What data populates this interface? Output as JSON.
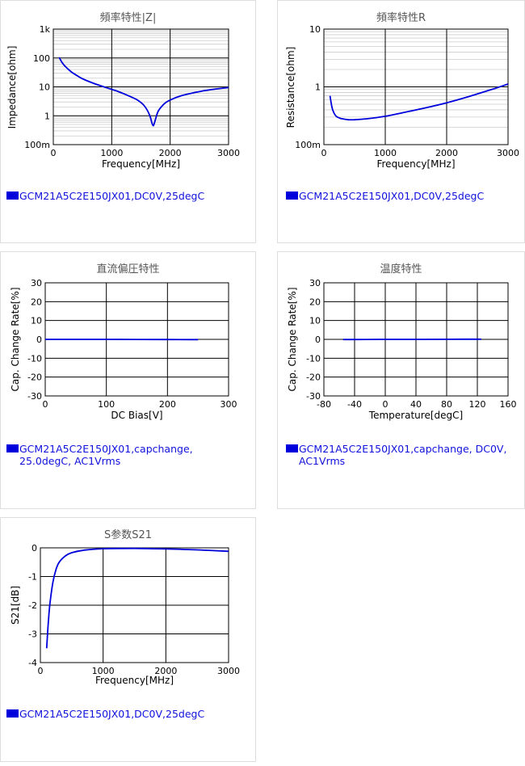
{
  "chart_data": [
    {
      "type": "line",
      "title": "頻率特性|Z|",
      "xlabel": "Frequency[MHz]",
      "ylabel": "Impedance[ohm]",
      "xlim": [
        0,
        3000
      ],
      "xticks": [
        "0",
        "1000",
        "2000",
        "3000"
      ],
      "yscale": "log",
      "ylim": [
        0.1,
        1000
      ],
      "yticks": [
        "100m",
        "1",
        "10",
        "100",
        "1k"
      ],
      "grid": true,
      "legend": "GCM21A5C2E150JX01,DC0V,25degC",
      "series": [
        {
          "name": "GCM21A5C2E150JX01,DC0V,25degC",
          "x": [
            100,
            150,
            200,
            300,
            400,
            500,
            700,
            900,
            1100,
            1300,
            1450,
            1550,
            1620,
            1660,
            1690,
            1710,
            1730,
            1760,
            1800,
            1900,
            2000,
            2200,
            2400,
            2600,
            2800,
            3000
          ],
          "y": [
            105,
            70,
            52,
            34,
            25,
            19,
            13,
            9.5,
            7,
            4.8,
            3.4,
            2.3,
            1.4,
            0.9,
            0.55,
            0.45,
            0.55,
            0.9,
            1.5,
            2.6,
            3.5,
            5,
            6.2,
            7.5,
            8.5,
            9.5
          ]
        }
      ]
    },
    {
      "type": "line",
      "title": "頻率特性R",
      "xlabel": "Frequency[MHz]",
      "ylabel": "Resistance[ohm]",
      "xlim": [
        0,
        3000
      ],
      "xticks": [
        "0",
        "1000",
        "2000",
        "3000"
      ],
      "yscale": "log",
      "ylim": [
        0.1,
        10
      ],
      "yticks": [
        "100m",
        "1",
        "10"
      ],
      "grid": true,
      "legend": "GCM21A5C2E150JX01,DC0V,25degC",
      "series": [
        {
          "name": "GCM21A5C2E150JX01,DC0V,25degC",
          "x": [
            100,
            130,
            160,
            200,
            250,
            300,
            400,
            500,
            700,
            1000,
            1300,
            1600,
            2000,
            2400,
            2800,
            3000
          ],
          "y": [
            0.7,
            0.45,
            0.36,
            0.31,
            0.29,
            0.28,
            0.27,
            0.27,
            0.28,
            0.31,
            0.36,
            0.42,
            0.53,
            0.7,
            0.95,
            1.12
          ]
        }
      ]
    },
    {
      "type": "line",
      "title": "直流偏圧特性",
      "xlabel": "DC Bias[V]",
      "ylabel": "Cap. Change Rate[%]",
      "xlim": [
        0,
        300
      ],
      "xticks": [
        "0",
        "100",
        "200",
        "300"
      ],
      "ylim": [
        -30,
        30
      ],
      "yticks": [
        "-30",
        "-20",
        "-10",
        "0",
        "10",
        "20",
        "30"
      ],
      "grid": true,
      "legend": "GCM21A5C2E150JX01,capchange, 25.0degC, AC1Vrms",
      "series": [
        {
          "name": "GCM21A5C2E150JX01,capchange, 25.0degC, AC1Vrms",
          "x": [
            0,
            50,
            100,
            150,
            200,
            250
          ],
          "y": [
            0,
            0,
            0,
            -0.05,
            -0.1,
            -0.15
          ]
        }
      ]
    },
    {
      "type": "line",
      "title": "温度特性",
      "xlabel": "Temperature[degC]",
      "ylabel": "Cap. Change Rate[%]",
      "xlim": [
        -80,
        160
      ],
      "xticks": [
        "-80",
        "-40",
        "0",
        "40",
        "80",
        "120",
        "160"
      ],
      "ylim": [
        -30,
        30
      ],
      "yticks": [
        "-30",
        "-20",
        "-10",
        "0",
        "10",
        "20",
        "30"
      ],
      "grid": true,
      "legend": "GCM21A5C2E150JX01,capchange, DC0V, AC1Vrms",
      "series": [
        {
          "name": "GCM21A5C2E150JX01,capchange, DC0V, AC1Vrms",
          "x": [
            -55,
            -25,
            0,
            25,
            50,
            85,
            125
          ],
          "y": [
            -0.1,
            -0.05,
            0,
            0,
            0,
            0.05,
            0.1
          ]
        }
      ]
    },
    {
      "type": "line",
      "title": "S参数S21",
      "xlabel": "Frequency[MHz]",
      "ylabel": "S21[dB]",
      "xlim": [
        0,
        3000
      ],
      "xticks": [
        "0",
        "1000",
        "2000",
        "3000"
      ],
      "ylim": [
        -4,
        0
      ],
      "yticks": [
        "-4",
        "-3",
        "-2",
        "-1",
        "0"
      ],
      "grid": true,
      "legend": "GCM21A5C2E150JX01,DC0V,25degC",
      "series": [
        {
          "name": "GCM21A5C2E150JX01,DC0V,25degC",
          "x": [
            100,
            120,
            150,
            200,
            250,
            300,
            400,
            500,
            700,
            1000,
            1500,
            2000,
            2500,
            3000
          ],
          "y": [
            -3.5,
            -2.8,
            -2.0,
            -1.2,
            -0.75,
            -0.5,
            -0.28,
            -0.17,
            -0.08,
            -0.03,
            -0.02,
            -0.04,
            -0.07,
            -0.12
          ]
        }
      ]
    }
  ],
  "colors": {
    "line": "#0000dd",
    "legend_text": "#1010dd",
    "title_text": "#555555"
  }
}
